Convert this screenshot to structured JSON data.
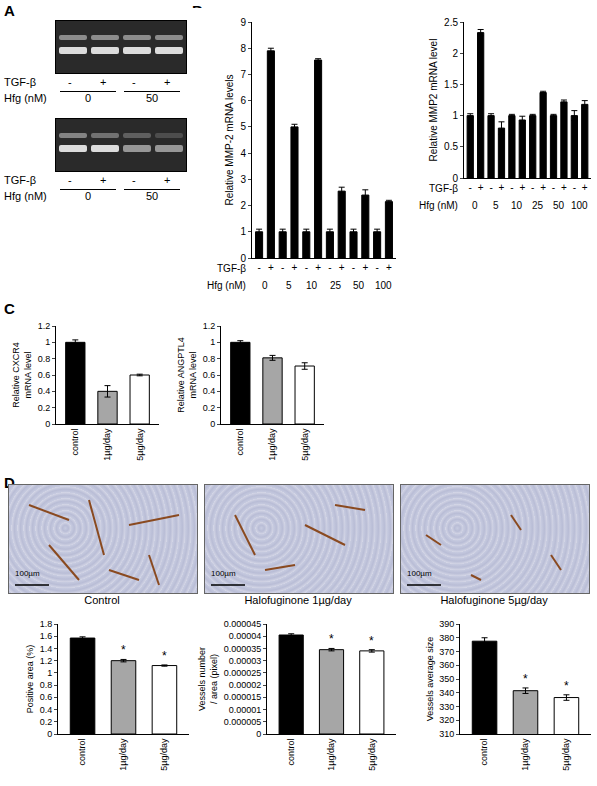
{
  "panel_labels": [
    "A",
    "B",
    "C",
    "D"
  ],
  "gels": [
    {
      "treatment_label": "TGF-β",
      "treatment": [
        "-",
        "+",
        "-",
        "+"
      ],
      "dose_label": "Hfg (nM)",
      "doses": [
        "0",
        "50"
      ]
    },
    {
      "treatment_label": "TGF-β",
      "treatment": [
        "-",
        "+",
        "-",
        "+"
      ],
      "dose_label": "Hfg (nM)",
      "doses": [
        "0",
        "50"
      ]
    }
  ],
  "images": [
    {
      "caption": "Control",
      "scale_bar": "100µm"
    },
    {
      "caption": "Halofuginone 1µg/day",
      "scale_bar": "100µm"
    },
    {
      "caption": "Halofuginone 5µg/day",
      "scale_bar": "100µm"
    }
  ],
  "chart_data": [
    {
      "type": "bar",
      "y_label": "Relative MMP-2 mRNA levels",
      "x_label": "TGF-β",
      "group_label": "Hfg (nM)",
      "groups": [
        "0",
        "5",
        "10",
        "25",
        "50",
        "100"
      ],
      "categories": [
        "-",
        "+",
        "-",
        "+",
        "-",
        "+",
        "-",
        "+",
        "-",
        "+",
        "-",
        "+"
      ],
      "values": [
        1,
        7.9,
        1,
        5.0,
        1,
        7.55,
        1,
        2.55,
        1,
        2.4,
        1,
        2.15
      ],
      "error": [
        0.1,
        0.1,
        0.1,
        0.1,
        0.1,
        0.05,
        0.1,
        0.15,
        0.1,
        0.2,
        0.1,
        0.05
      ],
      "color": "#000000",
      "ylim": [
        0,
        9
      ],
      "yticks": [
        0,
        1,
        2,
        3,
        4,
        5,
        6,
        7,
        8,
        9
      ],
      "grid": false
    },
    {
      "type": "bar",
      "y_label": "Relative MMP2 mRNA level",
      "x_label": "TGF-β",
      "group_label": "Hfg (nM)",
      "groups": [
        "0",
        "5",
        "10",
        "25",
        "50",
        "100"
      ],
      "categories": [
        "-",
        "+",
        "-",
        "+",
        "-",
        "+",
        "-",
        "+",
        "-",
        "+",
        "-",
        "+"
      ],
      "values": [
        1,
        2.33,
        1,
        0.8,
        1,
        0.93,
        1,
        1.37,
        1,
        1.22,
        1,
        1.18
      ],
      "error": [
        0.03,
        0.05,
        0.03,
        0.1,
        0.02,
        0.06,
        0.02,
        0.02,
        0.02,
        0.03,
        0.08,
        0.06
      ],
      "color": "#000000",
      "ylim": [
        0,
        2.5
      ],
      "yticks": [
        0,
        0.5,
        1,
        1.5,
        2,
        2.5
      ],
      "grid": false
    },
    {
      "type": "bar",
      "y_label": "Relative CXCR4 mRNA level",
      "categories": [
        "control",
        "1µg/day",
        "5µg/day"
      ],
      "values": [
        1,
        0.4,
        0.6
      ],
      "error": [
        0.03,
        0.07,
        0.01
      ],
      "colors": [
        "#000000",
        "#a6a6a6",
        "#ffffff"
      ],
      "ylim": [
        0,
        1.2
      ],
      "yticks": [
        0,
        0.2,
        0.4,
        0.6,
        0.8,
        1,
        1.2
      ],
      "grid": false
    },
    {
      "type": "bar",
      "y_label": "Relative ANGPTL4 mRNA level",
      "categories": [
        "control",
        "1µg/day",
        "5µg/day"
      ],
      "values": [
        1,
        0.81,
        0.71
      ],
      "error": [
        0.02,
        0.03,
        0.04
      ],
      "colors": [
        "#000000",
        "#a6a6a6",
        "#ffffff"
      ],
      "ylim": [
        0,
        1.2
      ],
      "yticks": [
        0,
        0.2,
        0.4,
        0.6,
        0.8,
        1,
        1.2
      ],
      "grid": false
    },
    {
      "type": "bar",
      "y_label": "Positive area (%)",
      "categories": [
        "control",
        "1µg/day",
        "5µg/day"
      ],
      "values": [
        1.57,
        1.2,
        1.12
      ],
      "error": [
        0.02,
        0.02,
        0.01
      ],
      "significance": [
        null,
        "*",
        "*"
      ],
      "colors": [
        "#000000",
        "#a6a6a6",
        "#ffffff"
      ],
      "ylim": [
        0,
        1.8
      ],
      "yticks": [
        0,
        0.2,
        0.4,
        0.6,
        0.8,
        1,
        1.2,
        1.4,
        1.6,
        1.8
      ],
      "grid": false
    },
    {
      "type": "bar",
      "y_label": "Vessels number / area (pixel)",
      "categories": [
        "control",
        "1µg/day",
        "5µg/day"
      ],
      "values": [
        4.05e-05,
        3.45e-05,
        3.4e-05
      ],
      "error": [
        5e-07,
        5e-07,
        5e-07
      ],
      "significance": [
        null,
        "*",
        "*"
      ],
      "colors": [
        "#000000",
        "#a6a6a6",
        "#ffffff"
      ],
      "ylim": [
        0,
        4.5e-05
      ],
      "yticks": [
        {
          "value": 0,
          "label": "0"
        },
        {
          "value": 5e-06,
          "label": "0.000005"
        },
        {
          "value": 1e-05,
          "label": "0.00001"
        },
        {
          "value": 1.5e-05,
          "label": "0.000015"
        },
        {
          "value": 2e-05,
          "label": "0.00002"
        },
        {
          "value": 2.5e-05,
          "label": "0.000025"
        },
        {
          "value": 3e-05,
          "label": "0.00003"
        },
        {
          "value": 3.5e-05,
          "label": "0.000035"
        },
        {
          "value": 4e-05,
          "label": "0.00004"
        },
        {
          "value": 4.5e-05,
          "label": "0.000045"
        }
      ],
      "grid": false
    },
    {
      "type": "bar",
      "y_label": "Vessels average size",
      "categories": [
        "control",
        "1µg/day",
        "5µg/day"
      ],
      "values": [
        377.5,
        341.5,
        336.5
      ],
      "error": [
        2.5,
        2,
        2
      ],
      "significance": [
        null,
        "*",
        "*"
      ],
      "colors": [
        "#000000",
        "#a6a6a6",
        "#ffffff"
      ],
      "ylim": [
        310,
        390
      ],
      "yticks": [
        310,
        320,
        330,
        340,
        350,
        360,
        370,
        380,
        390
      ],
      "grid": false
    }
  ]
}
